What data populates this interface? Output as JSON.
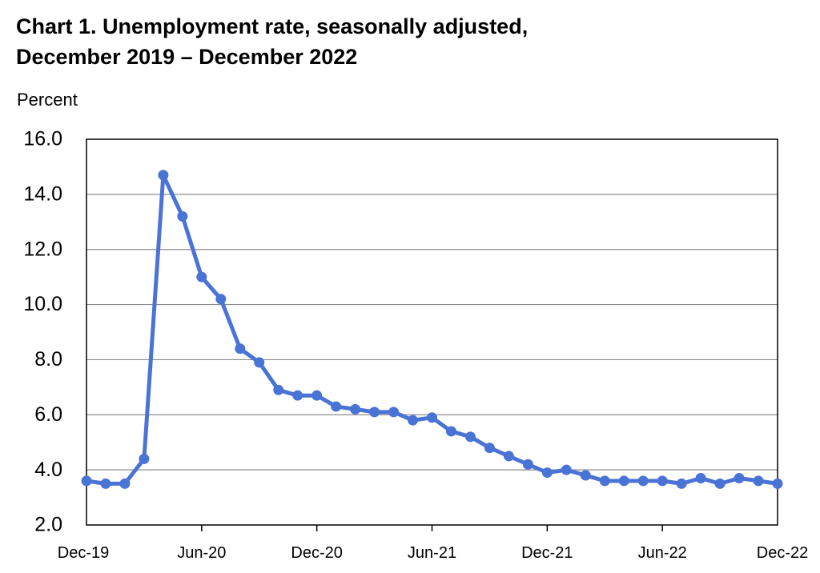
{
  "chart_data": {
    "type": "line",
    "title_line1": "Chart 1. Unemployment rate, seasonally adjusted,",
    "title_line2": "December 2019 – December 2022",
    "ylabel": "Percent",
    "xlabel": "",
    "ylim": [
      2.0,
      16.0
    ],
    "yticks": [
      "2.0",
      "4.0",
      "6.0",
      "8.0",
      "10.0",
      "12.0",
      "14.0",
      "16.0"
    ],
    "xtick_labels": [
      "Dec-19",
      "Jun-20",
      "Dec-20",
      "Jun-21",
      "Dec-21",
      "Jun-22",
      "Dec-22"
    ],
    "xtick_every": 6,
    "grid": true,
    "line_color": "#4a73d6",
    "series": [
      {
        "x": [
          "Dec-19",
          "Jan-20",
          "Feb-20",
          "Mar-20",
          "Apr-20",
          "May-20",
          "Jun-20",
          "Jul-20",
          "Aug-20",
          "Sep-20",
          "Oct-20",
          "Nov-20",
          "Dec-20",
          "Jan-21",
          "Feb-21",
          "Mar-21",
          "Apr-21",
          "May-21",
          "Jun-21",
          "Jul-21",
          "Aug-21",
          "Sep-21",
          "Oct-21",
          "Nov-21",
          "Dec-21",
          "Jan-22",
          "Feb-22",
          "Mar-22",
          "Apr-22",
          "May-22",
          "Jun-22",
          "Jul-22",
          "Aug-22",
          "Sep-22",
          "Oct-22",
          "Nov-22",
          "Dec-22"
        ],
        "values": [
          3.6,
          3.5,
          3.5,
          4.4,
          14.7,
          13.2,
          11.0,
          10.2,
          8.4,
          7.9,
          6.9,
          6.7,
          6.7,
          6.3,
          6.2,
          6.1,
          6.1,
          5.8,
          5.9,
          5.4,
          5.2,
          4.8,
          4.5,
          4.2,
          3.9,
          4.0,
          3.8,
          3.6,
          3.6,
          3.6,
          3.6,
          3.5,
          3.7,
          3.5,
          3.7,
          3.6,
          3.5
        ]
      }
    ]
  }
}
